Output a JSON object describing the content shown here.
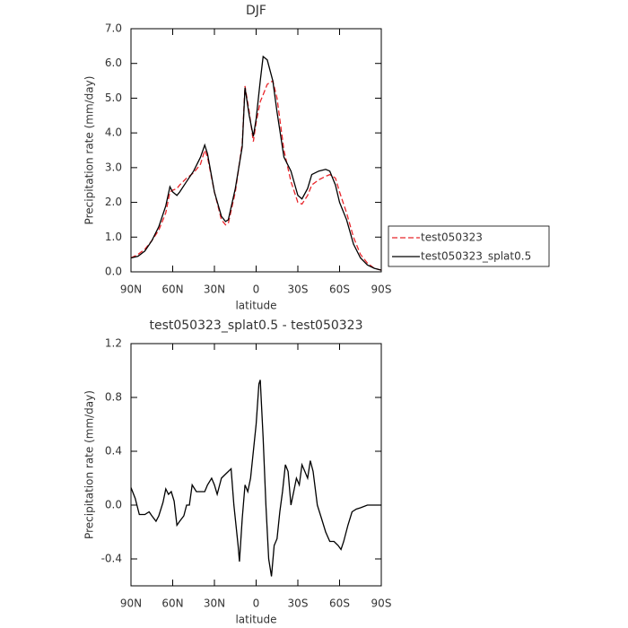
{
  "chart_data": [
    {
      "type": "line",
      "title": "DJF",
      "xlabel": "latitude",
      "ylabel": "Precipitation rate (mm/day)",
      "xlim": [
        90,
        -90
      ],
      "ylim": [
        0,
        7
      ],
      "xticks": [
        {
          "value": 90,
          "label": "90N"
        },
        {
          "value": 60,
          "label": "60N"
        },
        {
          "value": 30,
          "label": "30N"
        },
        0,
        {
          "value": -30,
          "label": "30S"
        },
        {
          "value": -60,
          "label": "60S"
        },
        {
          "value": -90,
          "label": "90S"
        }
      ],
      "yticks": [
        {
          "value": 0,
          "label": "0.0"
        },
        {
          "value": 1,
          "label": "1.0"
        },
        {
          "value": 2,
          "label": "2.0"
        },
        {
          "value": 3,
          "label": "3.0"
        },
        {
          "value": 4,
          "label": "4.0"
        },
        {
          "value": 5,
          "label": "5.0"
        },
        {
          "value": 6,
          "label": "6.0"
        },
        {
          "value": 7,
          "label": "7.0"
        }
      ],
      "legend": "right",
      "x": [
        90,
        85,
        80,
        75,
        70,
        65,
        62,
        60,
        57,
        55,
        50,
        45,
        40,
        37,
        35,
        30,
        25,
        22,
        20,
        15,
        10,
        8,
        5,
        2,
        0,
        -3,
        -5,
        -8,
        -12,
        -15,
        -20,
        -25,
        -30,
        -33,
        -37,
        -40,
        -45,
        -50,
        -53,
        -57,
        -60,
        -65,
        -70,
        -75,
        -80,
        -85,
        -90
      ],
      "series": [
        {
          "name": "test050323",
          "color": "#e8262b",
          "dash": "dashed",
          "values": [
            0.4,
            0.5,
            0.65,
            0.9,
            1.2,
            1.7,
            2.3,
            2.35,
            2.4,
            2.5,
            2.7,
            2.85,
            3.1,
            3.5,
            3.3,
            2.3,
            1.5,
            1.35,
            1.4,
            2.3,
            3.7,
            5.35,
            4.6,
            3.75,
            4.3,
            4.9,
            5.1,
            5.4,
            5.5,
            5.0,
            3.5,
            2.6,
            2.0,
            1.95,
            2.2,
            2.5,
            2.65,
            2.75,
            2.8,
            2.7,
            2.3,
            1.7,
            1.0,
            0.5,
            0.25,
            0.1,
            0.05
          ]
        },
        {
          "name": "test050323_splat0.5",
          "color": "#000000",
          "dash": "solid",
          "values": [
            0.4,
            0.45,
            0.6,
            0.9,
            1.3,
            1.9,
            2.45,
            2.3,
            2.2,
            2.3,
            2.6,
            2.9,
            3.3,
            3.65,
            3.4,
            2.3,
            1.6,
            1.45,
            1.5,
            2.4,
            3.6,
            5.3,
            4.5,
            3.9,
            4.4,
            5.5,
            6.2,
            6.1,
            5.5,
            4.6,
            3.3,
            2.9,
            2.2,
            2.1,
            2.4,
            2.8,
            2.9,
            2.95,
            2.9,
            2.5,
            2.0,
            1.5,
            0.8,
            0.4,
            0.2,
            0.1,
            0.05
          ]
        }
      ]
    },
    {
      "type": "line",
      "title": "test050323_splat0.5 - test050323",
      "xlabel": "latitude",
      "ylabel": "Precipitation rate (mm/day)",
      "xlim": [
        90,
        -90
      ],
      "ylim": [
        -0.6,
        1.2
      ],
      "xticks": [
        {
          "value": 90,
          "label": "90N"
        },
        {
          "value": 60,
          "label": "60N"
        },
        {
          "value": 30,
          "label": "30N"
        },
        0,
        {
          "value": -30,
          "label": "30S"
        },
        {
          "value": -60,
          "label": "60S"
        },
        {
          "value": -90,
          "label": "90S"
        }
      ],
      "yticks": [
        -0.4,
        {
          "value": 0,
          "label": "0.0"
        },
        0.4,
        0.8,
        1.2
      ],
      "x": [
        90,
        87,
        84,
        80,
        77,
        75,
        72,
        70,
        67,
        65,
        63,
        61,
        59,
        57,
        55,
        52,
        50,
        48,
        46,
        43,
        40,
        37,
        35,
        32,
        30,
        28,
        25,
        22,
        20,
        18,
        16,
        13,
        12,
        10,
        8,
        6,
        4,
        2,
        0,
        -2,
        -3,
        -5,
        -7,
        -9,
        -11,
        -13,
        -15,
        -17,
        -19,
        -21,
        -23,
        -25,
        -27,
        -29,
        -31,
        -33,
        -35,
        -37,
        -39,
        -41,
        -44,
        -47,
        -50,
        -53,
        -56,
        -59,
        -61,
        -63,
        -66,
        -69,
        -72,
        -75,
        -80,
        -90
      ],
      "series": [
        {
          "color": "#000000",
          "dash": "solid",
          "values": [
            0.13,
            0.05,
            -0.07,
            -0.07,
            -0.05,
            -0.08,
            -0.12,
            -0.08,
            0.02,
            0.12,
            0.08,
            0.1,
            0.03,
            -0.15,
            -0.12,
            -0.08,
            0.0,
            0.0,
            0.15,
            0.1,
            0.1,
            0.1,
            0.15,
            0.2,
            0.15,
            0.08,
            0.2,
            0.23,
            0.25,
            0.27,
            0.0,
            -0.3,
            -0.42,
            -0.1,
            0.15,
            0.1,
            0.2,
            0.4,
            0.6,
            0.9,
            0.93,
            0.5,
            0.0,
            -0.4,
            -0.53,
            -0.3,
            -0.25,
            -0.05,
            0.1,
            0.3,
            0.25,
            0.0,
            0.1,
            0.2,
            0.15,
            0.3,
            0.25,
            0.2,
            0.33,
            0.25,
            0.0,
            -0.1,
            -0.2,
            -0.27,
            -0.27,
            -0.3,
            -0.33,
            -0.27,
            -0.15,
            -0.05,
            -0.03,
            -0.02,
            0.0,
            0.0
          ]
        }
      ]
    }
  ]
}
